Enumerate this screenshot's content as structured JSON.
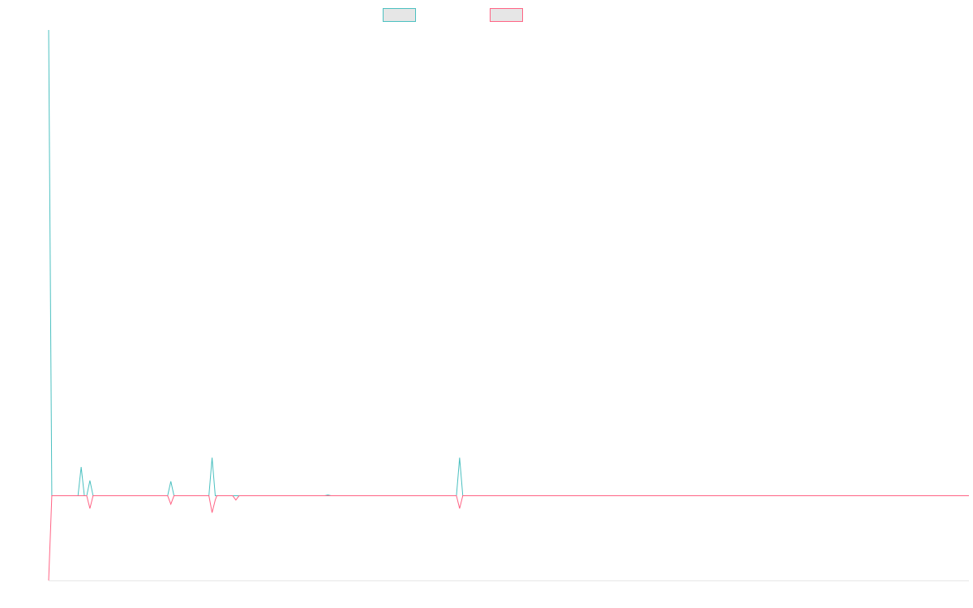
{
  "chart_data": {
    "type": "line",
    "title": "",
    "xlabel": "",
    "ylabel": "",
    "grid": false,
    "legend_position": "top-center",
    "legend_swatch_fill": "#e6e6e6",
    "xlim": [
      0,
      116
    ],
    "ylim": [
      -10,
      55
    ],
    "baseline": 0,
    "series": [
      {
        "color": "#4bc0c0",
        "points": [
          [
            0,
            55
          ],
          [
            0.4,
            0
          ],
          [
            3.7,
            0
          ],
          [
            4.1,
            3.4
          ],
          [
            4.5,
            0
          ],
          [
            4.8,
            0
          ],
          [
            5.2,
            1.8
          ],
          [
            5.6,
            0
          ],
          [
            15.0,
            0
          ],
          [
            15.4,
            1.7
          ],
          [
            15.8,
            0
          ],
          [
            20.2,
            0
          ],
          [
            20.6,
            4.5
          ],
          [
            21.0,
            0
          ],
          [
            34.8,
            0
          ],
          [
            35.2,
            0.1
          ],
          [
            35.6,
            0
          ],
          [
            51.4,
            0
          ],
          [
            51.8,
            4.5
          ],
          [
            52.2,
            0
          ],
          [
            116,
            0
          ]
        ]
      },
      {
        "color": "#ff6384",
        "points": [
          [
            0,
            -10
          ],
          [
            0.4,
            0
          ],
          [
            4.8,
            0
          ],
          [
            5.2,
            -1.5
          ],
          [
            5.6,
            0
          ],
          [
            15.0,
            0
          ],
          [
            15.4,
            -1.0
          ],
          [
            15.8,
            0
          ],
          [
            20.2,
            0
          ],
          [
            20.6,
            -2.0
          ],
          [
            21.0,
            -0.5
          ],
          [
            21.2,
            0
          ],
          [
            23.2,
            0
          ],
          [
            23.6,
            -0.5
          ],
          [
            24.0,
            0
          ],
          [
            51.4,
            0
          ],
          [
            51.8,
            -1.5
          ],
          [
            52.2,
            0
          ],
          [
            116,
            0
          ]
        ]
      }
    ]
  }
}
